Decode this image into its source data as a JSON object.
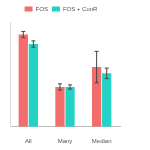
{
  "chart_data": {
    "type": "bar",
    "categories": [
      "All",
      "Many",
      "Median"
    ],
    "series": [
      {
        "name": "FOS",
        "color": "#f26d6b",
        "values": [
          88,
          38,
          57
        ],
        "errors": [
          3,
          3,
          15
        ]
      },
      {
        "name": "FOS + ConR",
        "color": "#22d3c5",
        "values": [
          79,
          38,
          51
        ],
        "errors": [
          3,
          2,
          5
        ]
      }
    ],
    "ylim": [
      0,
      100
    ],
    "grid": false,
    "legend": "top",
    "tick_labels": "x"
  }
}
